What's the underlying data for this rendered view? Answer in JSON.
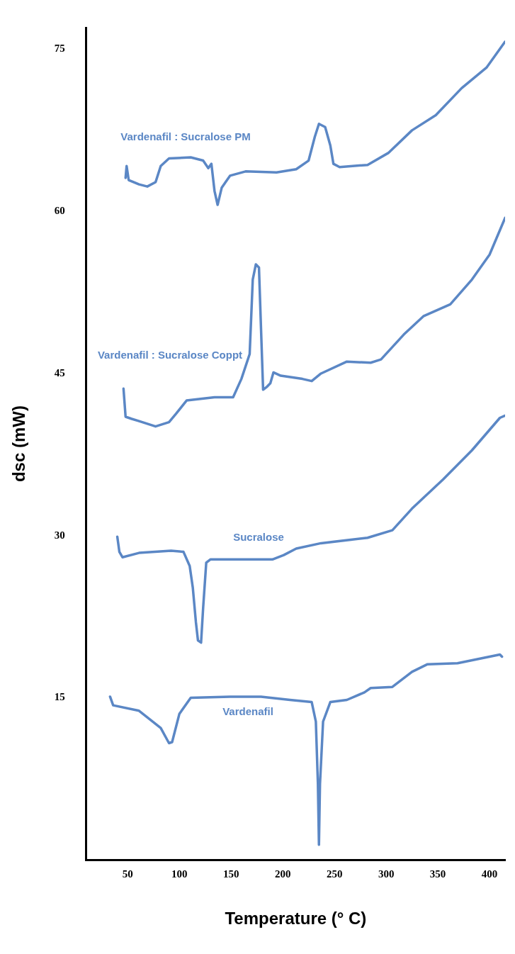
{
  "chart_data": {
    "type": "line",
    "xlabel": "Temperature (° C)",
    "ylabel": "dsc (mW)",
    "xlim": [
      10,
      415
    ],
    "xticks": [
      50,
      100,
      150,
      200,
      250,
      300,
      350,
      400
    ],
    "ylim": [
      0,
      77
    ],
    "yticks": [
      15,
      30,
      45,
      60,
      75
    ],
    "grid": false,
    "legend": false,
    "marker": "none",
    "line_style": "solid",
    "series": [
      {
        "name": "Vardenafil",
        "color": "#5b87c5",
        "x": [
          33,
          36,
          61,
          82,
          90,
          93,
          100,
          111,
          149,
          179,
          207,
          228,
          232,
          234,
          235,
          236,
          239,
          246,
          262,
          279,
          285,
          306,
          325,
          340,
          369,
          410,
          412
        ],
        "values": [
          15.1,
          14.3,
          13.8,
          12.2,
          10.8,
          10.9,
          13.5,
          15,
          15.1,
          15.1,
          14.8,
          14.6,
          12.8,
          7,
          1.4,
          7,
          12.8,
          14.6,
          14.8,
          15.5,
          15.9,
          16,
          17.4,
          18.1,
          18.2,
          19,
          18.8
        ]
      },
      {
        "name": "Sucralose",
        "color": "#5b87c5",
        "x": [
          40,
          42,
          45,
          61,
          92,
          104,
          110,
          113,
          116,
          118,
          121,
          123,
          126,
          130,
          164,
          190,
          201,
          213,
          237,
          282,
          306,
          325,
          355,
          383,
          410,
          415
        ],
        "values": [
          29.9,
          28.5,
          28,
          28.4,
          28.6,
          28.5,
          27.2,
          25.2,
          22,
          20.3,
          20.1,
          23.3,
          27.5,
          27.8,
          27.8,
          27.8,
          28.2,
          28.8,
          29.3,
          29.8,
          30.5,
          32.5,
          35.2,
          37.9,
          40.9,
          41.1
        ]
      },
      {
        "name": "Vardenafil : Sucralose Coppt",
        "color": "#5b87c5",
        "x": [
          46,
          48,
          54,
          61,
          77,
          90,
          97,
          107,
          134,
          152,
          160,
          168,
          171,
          174,
          177,
          179,
          181,
          185,
          188,
          191,
          198,
          219,
          228,
          237,
          262,
          285,
          295,
          317,
          336,
          362,
          383,
          400,
          415
        ],
        "values": [
          43.6,
          41,
          40.8,
          40.6,
          40.1,
          40.5,
          41.3,
          42.5,
          42.8,
          42.8,
          44.5,
          46.8,
          53.7,
          55.1,
          54.8,
          49.1,
          43.5,
          43.8,
          44.1,
          45.1,
          44.8,
          44.5,
          44.3,
          45,
          46.1,
          46,
          46.3,
          48.6,
          50.3,
          51.4,
          53.7,
          56,
          59.4
        ]
      },
      {
        "name": "Vardenafil : Sucralose PM",
        "color": "#5b87c5",
        "x": [
          48,
          49,
          51,
          61,
          69,
          77,
          82,
          90,
          111,
          123,
          128,
          131,
          134,
          137,
          141,
          149,
          164,
          194,
          213,
          225,
          231,
          235,
          241,
          246,
          249,
          255,
          282,
          302,
          325,
          348,
          373,
          397,
          415
        ],
        "values": [
          63.1,
          64.2,
          62.9,
          62.5,
          62.3,
          62.7,
          64.2,
          64.9,
          65,
          64.7,
          64,
          64.4,
          61.9,
          60.6,
          62.2,
          63.3,
          63.7,
          63.6,
          63.9,
          64.7,
          66.9,
          68.1,
          67.8,
          66.1,
          64.4,
          64.1,
          64.3,
          65.4,
          67.5,
          68.9,
          71.4,
          73.3,
          75.7
        ]
      }
    ]
  }
}
